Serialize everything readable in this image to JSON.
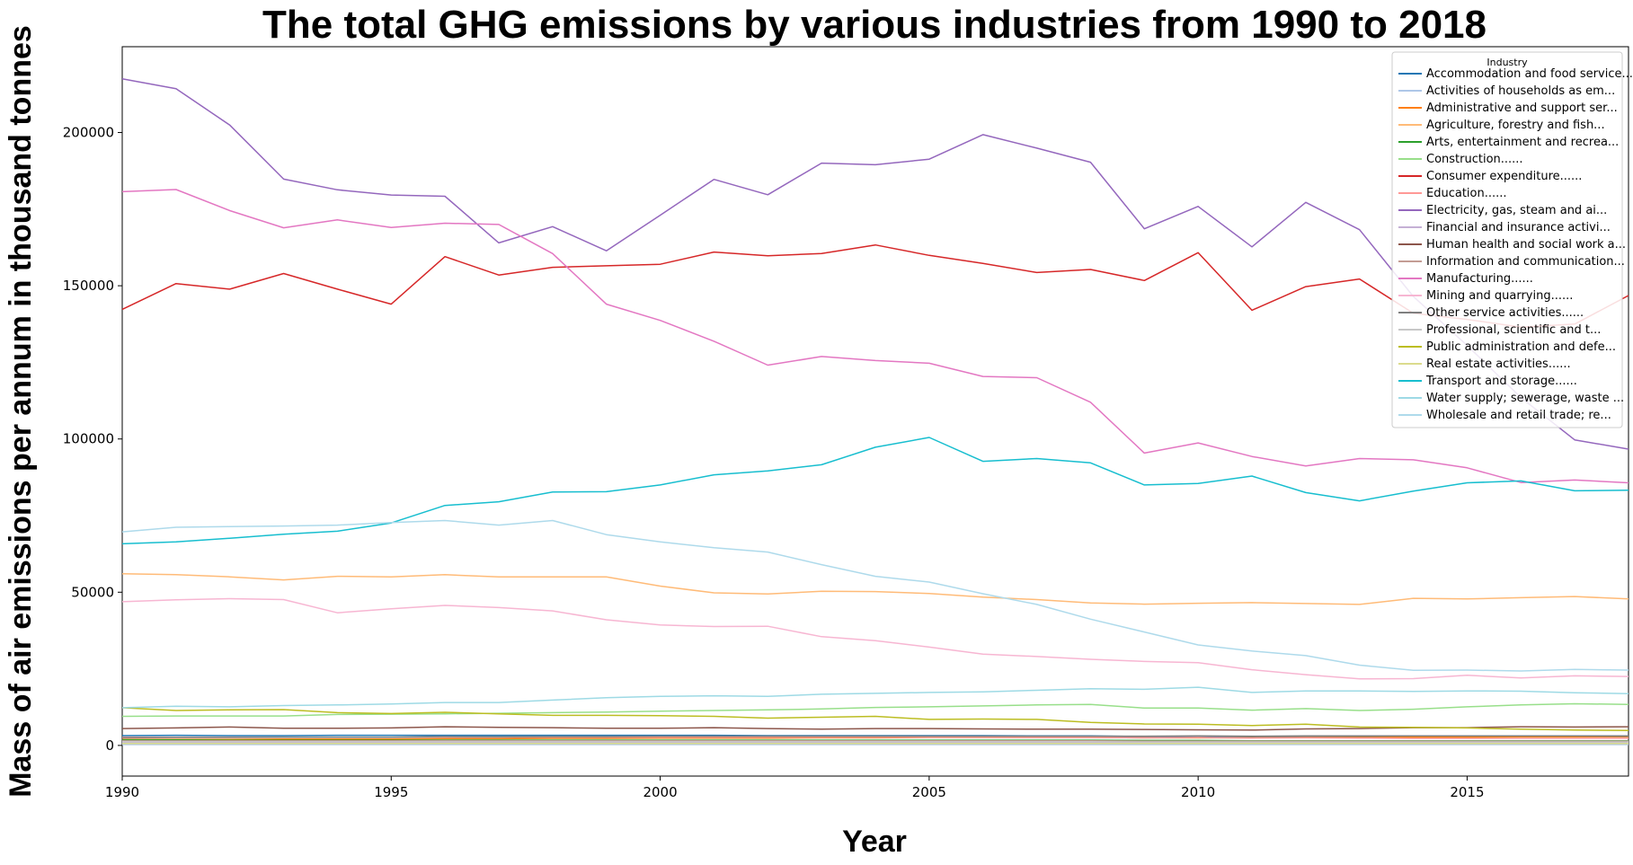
{
  "chart_data": {
    "type": "line",
    "title": "The total GHG emissions by various industries from 1990 to 2018",
    "xlabel": "Year",
    "ylabel": "Mass of air emissions per annum in thousand tonnes",
    "xlim": [
      1990,
      2018
    ],
    "ylim": [
      -10000,
      228000
    ],
    "x_ticks": [
      1990,
      1995,
      2000,
      2005,
      2010,
      2015
    ],
    "y_ticks": [
      0,
      50000,
      100000,
      150000,
      200000
    ],
    "grid": false,
    "legend_title": "Industry",
    "legend_position": "top-right",
    "x": [
      1990,
      1991,
      1992,
      1993,
      1994,
      1995,
      1996,
      1997,
      1998,
      1999,
      2000,
      2001,
      2002,
      2003,
      2004,
      2005,
      2006,
      2007,
      2008,
      2009,
      2010,
      2011,
      2012,
      2013,
      2014,
      2015,
      2016,
      2017,
      2018
    ],
    "series": [
      {
        "name": "Accommodation and food service...",
        "color": "#1f77b4",
        "values": [
          3200,
          3300,
          3200,
          3200,
          3300,
          3300,
          3300,
          3300,
          3300,
          3300,
          3300,
          3300,
          3200,
          3200,
          3200,
          3200,
          3200,
          3100,
          3100,
          2900,
          3000,
          2800,
          2900,
          2900,
          2800,
          2800,
          2800,
          2800,
          2800
        ]
      },
      {
        "name": "Activities of households as em...",
        "color": "#aec7e8",
        "values": [
          300,
          300,
          300,
          300,
          300,
          300,
          300,
          300,
          300,
          300,
          300,
          300,
          300,
          300,
          300,
          300,
          300,
          300,
          300,
          300,
          300,
          300,
          300,
          300,
          300,
          300,
          300,
          300,
          300
        ]
      },
      {
        "name": "Administrative and support ser...",
        "color": "#ff7f0e",
        "values": [
          2000,
          2000,
          2000,
          2100,
          2100,
          2100,
          2200,
          2200,
          2300,
          2300,
          2400,
          2400,
          2400,
          2500,
          2500,
          2600,
          2600,
          2600,
          2600,
          2500,
          2500,
          2500,
          2600,
          2600,
          2700,
          2700,
          2800,
          2800,
          2900
        ]
      },
      {
        "name": "Agriculture, forestry and fish...",
        "color": "#ffbb78",
        "values": [
          56000,
          55700,
          55000,
          54000,
          55200,
          55000,
          55700,
          55000,
          55000,
          55000,
          52000,
          49800,
          49400,
          50300,
          50200,
          49600,
          48400,
          47600,
          46500,
          46100,
          46400,
          46600,
          46300,
          46000,
          48000,
          47800,
          48200,
          48600,
          47800
        ]
      },
      {
        "name": "Arts, entertainment and recrea...",
        "color": "#2ca02c",
        "values": [
          1800,
          1800,
          1700,
          1700,
          1700,
          1700,
          1700,
          1700,
          1700,
          1700,
          1700,
          1700,
          1700,
          1700,
          1700,
          1700,
          1700,
          1700,
          1700,
          1600,
          1600,
          1500,
          1500,
          1500,
          1500,
          1500,
          1500,
          1500,
          1500
        ]
      },
      {
        "name": "Construction......",
        "color": "#98df8a",
        "values": [
          9500,
          9600,
          9600,
          9600,
          10100,
          10200,
          10300,
          10500,
          10700,
          10900,
          11200,
          11400,
          11600,
          11900,
          12400,
          12600,
          12900,
          13200,
          13400,
          12200,
          12200,
          11500,
          12000,
          11400,
          11800,
          12600,
          13200,
          13600,
          13400
        ]
      },
      {
        "name": "Consumer expenditure......",
        "color": "#d62728",
        "values": [
          142300,
          150700,
          148900,
          154000,
          148900,
          144000,
          159500,
          153500,
          156000,
          156500,
          157000,
          161000,
          159800,
          160500,
          163300,
          159900,
          157300,
          154300,
          155300,
          151700,
          160800,
          142000,
          149700,
          152200,
          141000,
          139000,
          136500,
          137500,
          146800
        ]
      },
      {
        "name": "Education......",
        "color": "#ff9896",
        "values": [
          2700,
          2700,
          2700,
          2700,
          2700,
          2700,
          2700,
          2700,
          2700,
          2700,
          2700,
          2700,
          2700,
          2700,
          2700,
          2700,
          2700,
          2600,
          2600,
          2500,
          2600,
          2400,
          2500,
          2400,
          2300,
          2300,
          2300,
          2300,
          2300
        ]
      },
      {
        "name": "Electricity, gas, steam and ai...",
        "color": "#9467bd",
        "values": [
          217500,
          214300,
          202400,
          184800,
          181300,
          179600,
          179200,
          164000,
          169300,
          161400,
          173000,
          184700,
          179700,
          190000,
          189500,
          191300,
          199300,
          194900,
          190300,
          168600,
          175900,
          162700,
          177200,
          168300,
          146500,
          130500,
          113500,
          99700,
          96700
        ]
      },
      {
        "name": "Financial and insurance activi...",
        "color": "#c5b0d5",
        "values": [
          900,
          900,
          900,
          900,
          900,
          900,
          900,
          900,
          900,
          900,
          900,
          900,
          900,
          900,
          900,
          900,
          900,
          900,
          900,
          800,
          800,
          800,
          800,
          800,
          800,
          800,
          800,
          800,
          800
        ]
      },
      {
        "name": "Human health and social work a...",
        "color": "#8c564b",
        "values": [
          5500,
          5700,
          6000,
          5600,
          5600,
          5700,
          6100,
          5900,
          5800,
          5600,
          5600,
          5800,
          5500,
          5300,
          5500,
          5500,
          5400,
          5300,
          5300,
          5200,
          5100,
          5000,
          5400,
          5500,
          5800,
          5800,
          6100,
          6000,
          6100
        ]
      },
      {
        "name": "Information and communication...",
        "color": "#c49c94",
        "values": [
          1500,
          1500,
          1500,
          1500,
          1500,
          1500,
          1500,
          1500,
          1500,
          1500,
          1500,
          1500,
          1500,
          1500,
          1500,
          1500,
          1500,
          1500,
          1500,
          1400,
          1400,
          1400,
          1400,
          1400,
          1400,
          1400,
          1400,
          1400,
          1400
        ]
      },
      {
        "name": "Manufacturing......",
        "color": "#e377c2",
        "values": [
          180700,
          181400,
          174500,
          168900,
          171500,
          169000,
          170400,
          170000,
          160500,
          144000,
          138700,
          131900,
          124100,
          126900,
          125600,
          124700,
          120400,
          120000,
          112000,
          95400,
          98700,
          94300,
          91200,
          93600,
          93200,
          90600,
          85800,
          86600,
          85700
        ]
      },
      {
        "name": "Mining and quarrying......",
        "color": "#f7b6d2",
        "values": [
          46900,
          47500,
          47900,
          47600,
          43300,
          44600,
          45700,
          45000,
          43900,
          41000,
          39300,
          38800,
          38900,
          35500,
          34200,
          32100,
          29800,
          29000,
          28100,
          27400,
          27000,
          24700,
          23100,
          21700,
          21800,
          22900,
          22000,
          22700,
          22500
        ]
      },
      {
        "name": "Other service activities......",
        "color": "#7f7f7f",
        "values": [
          2500,
          2600,
          2600,
          2700,
          2700,
          2700,
          2900,
          2800,
          2900,
          2900,
          3000,
          3000,
          3000,
          3000,
          3000,
          3000,
          3000,
          3000,
          3000,
          3000,
          3100,
          3000,
          3100,
          3100,
          3100,
          3100,
          3100,
          3100,
          3100
        ]
      },
      {
        "name": "Professional, scientific and t...",
        "color": "#c7c7c7",
        "values": [
          1200,
          1200,
          1200,
          1200,
          1200,
          1200,
          1200,
          1200,
          1200,
          1200,
          1200,
          1200,
          1200,
          1200,
          1200,
          1200,
          1200,
          1200,
          1200,
          1100,
          1100,
          1100,
          1100,
          1100,
          1100,
          1100,
          1100,
          1100,
          1100
        ]
      },
      {
        "name": "Public administration and defe...",
        "color": "#bcbd22",
        "values": [
          12300,
          11400,
          11600,
          11700,
          10700,
          10400,
          10800,
          10300,
          9800,
          9800,
          9700,
          9500,
          8900,
          9200,
          9500,
          8500,
          8600,
          8500,
          7500,
          7000,
          6900,
          6500,
          6900,
          6000,
          5900,
          5700,
          5300,
          5000,
          4900
        ]
      },
      {
        "name": "Real estate activities......",
        "color": "#dbdb8d",
        "values": [
          600,
          600,
          600,
          600,
          600,
          600,
          600,
          600,
          600,
          600,
          600,
          600,
          600,
          600,
          600,
          600,
          600,
          600,
          600,
          600,
          600,
          600,
          600,
          600,
          600,
          600,
          600,
          600,
          600
        ]
      },
      {
        "name": "Transport and storage......",
        "color": "#17becf",
        "values": [
          65800,
          66400,
          67600,
          68900,
          69900,
          72600,
          78300,
          79500,
          82700,
          82800,
          85000,
          88300,
          89600,
          91600,
          97300,
          100500,
          92700,
          93600,
          92200,
          85000,
          85500,
          87900,
          82500,
          79800,
          83000,
          85700,
          86300,
          83100,
          83300
        ]
      },
      {
        "name": "Water supply; sewerage, waste ...",
        "color": "#9edae5",
        "values": [
          12300,
          12800,
          12600,
          13000,
          13200,
          13500,
          14000,
          14000,
          14800,
          15600,
          16000,
          16200,
          16000,
          16700,
          17000,
          17300,
          17500,
          18000,
          18500,
          18300,
          19000,
          17300,
          17800,
          17800,
          17600,
          17800,
          17700,
          17200,
          16900
        ]
      },
      {
        "name": "Wholesale and retail trade; re...",
        "color": "#aedaeb",
        "values": [
          69700,
          71200,
          71400,
          71600,
          71900,
          72700,
          73400,
          71900,
          73400,
          68800,
          66400,
          64500,
          63100,
          59000,
          55200,
          53300,
          49500,
          46000,
          41200,
          37000,
          32800,
          30800,
          29300,
          26200,
          24500,
          24600,
          24300,
          24800,
          24600
        ]
      }
    ]
  }
}
